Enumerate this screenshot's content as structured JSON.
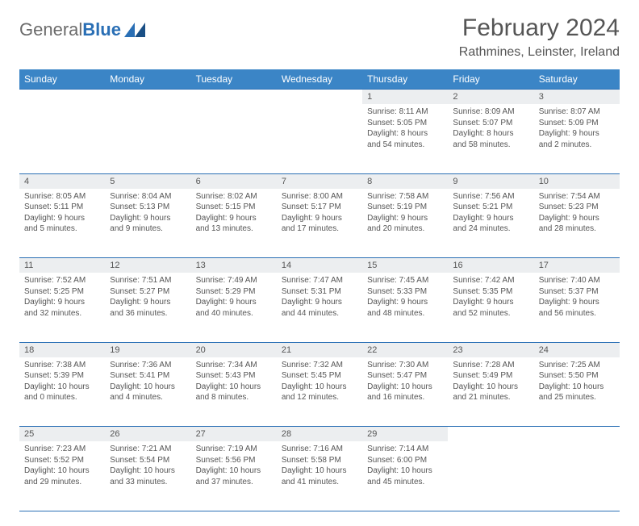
{
  "logo": {
    "word1": "General",
    "word2": "Blue"
  },
  "title": "February 2024",
  "location": "Rathmines, Leinster, Ireland",
  "colors": {
    "header_bg": "#3b85c6",
    "rule": "#2a6fb5",
    "daynum_bg": "#eceef0",
    "text": "#555555"
  },
  "weekdays": [
    "Sunday",
    "Monday",
    "Tuesday",
    "Wednesday",
    "Thursday",
    "Friday",
    "Saturday"
  ],
  "weeks": [
    [
      null,
      null,
      null,
      null,
      {
        "n": "1",
        "sr": "8:11 AM",
        "ss": "5:05 PM",
        "dl": "8 hours and 54 minutes."
      },
      {
        "n": "2",
        "sr": "8:09 AM",
        "ss": "5:07 PM",
        "dl": "8 hours and 58 minutes."
      },
      {
        "n": "3",
        "sr": "8:07 AM",
        "ss": "5:09 PM",
        "dl": "9 hours and 2 minutes."
      }
    ],
    [
      {
        "n": "4",
        "sr": "8:05 AM",
        "ss": "5:11 PM",
        "dl": "9 hours and 5 minutes."
      },
      {
        "n": "5",
        "sr": "8:04 AM",
        "ss": "5:13 PM",
        "dl": "9 hours and 9 minutes."
      },
      {
        "n": "6",
        "sr": "8:02 AM",
        "ss": "5:15 PM",
        "dl": "9 hours and 13 minutes."
      },
      {
        "n": "7",
        "sr": "8:00 AM",
        "ss": "5:17 PM",
        "dl": "9 hours and 17 minutes."
      },
      {
        "n": "8",
        "sr": "7:58 AM",
        "ss": "5:19 PM",
        "dl": "9 hours and 20 minutes."
      },
      {
        "n": "9",
        "sr": "7:56 AM",
        "ss": "5:21 PM",
        "dl": "9 hours and 24 minutes."
      },
      {
        "n": "10",
        "sr": "7:54 AM",
        "ss": "5:23 PM",
        "dl": "9 hours and 28 minutes."
      }
    ],
    [
      {
        "n": "11",
        "sr": "7:52 AM",
        "ss": "5:25 PM",
        "dl": "9 hours and 32 minutes."
      },
      {
        "n": "12",
        "sr": "7:51 AM",
        "ss": "5:27 PM",
        "dl": "9 hours and 36 minutes."
      },
      {
        "n": "13",
        "sr": "7:49 AM",
        "ss": "5:29 PM",
        "dl": "9 hours and 40 minutes."
      },
      {
        "n": "14",
        "sr": "7:47 AM",
        "ss": "5:31 PM",
        "dl": "9 hours and 44 minutes."
      },
      {
        "n": "15",
        "sr": "7:45 AM",
        "ss": "5:33 PM",
        "dl": "9 hours and 48 minutes."
      },
      {
        "n": "16",
        "sr": "7:42 AM",
        "ss": "5:35 PM",
        "dl": "9 hours and 52 minutes."
      },
      {
        "n": "17",
        "sr": "7:40 AM",
        "ss": "5:37 PM",
        "dl": "9 hours and 56 minutes."
      }
    ],
    [
      {
        "n": "18",
        "sr": "7:38 AM",
        "ss": "5:39 PM",
        "dl": "10 hours and 0 minutes."
      },
      {
        "n": "19",
        "sr": "7:36 AM",
        "ss": "5:41 PM",
        "dl": "10 hours and 4 minutes."
      },
      {
        "n": "20",
        "sr": "7:34 AM",
        "ss": "5:43 PM",
        "dl": "10 hours and 8 minutes."
      },
      {
        "n": "21",
        "sr": "7:32 AM",
        "ss": "5:45 PM",
        "dl": "10 hours and 12 minutes."
      },
      {
        "n": "22",
        "sr": "7:30 AM",
        "ss": "5:47 PM",
        "dl": "10 hours and 16 minutes."
      },
      {
        "n": "23",
        "sr": "7:28 AM",
        "ss": "5:49 PM",
        "dl": "10 hours and 21 minutes."
      },
      {
        "n": "24",
        "sr": "7:25 AM",
        "ss": "5:50 PM",
        "dl": "10 hours and 25 minutes."
      }
    ],
    [
      {
        "n": "25",
        "sr": "7:23 AM",
        "ss": "5:52 PM",
        "dl": "10 hours and 29 minutes."
      },
      {
        "n": "26",
        "sr": "7:21 AM",
        "ss": "5:54 PM",
        "dl": "10 hours and 33 minutes."
      },
      {
        "n": "27",
        "sr": "7:19 AM",
        "ss": "5:56 PM",
        "dl": "10 hours and 37 minutes."
      },
      {
        "n": "28",
        "sr": "7:16 AM",
        "ss": "5:58 PM",
        "dl": "10 hours and 41 minutes."
      },
      {
        "n": "29",
        "sr": "7:14 AM",
        "ss": "6:00 PM",
        "dl": "10 hours and 45 minutes."
      },
      null,
      null
    ]
  ],
  "labels": {
    "sunrise": "Sunrise: ",
    "sunset": "Sunset: ",
    "daylight": "Daylight: "
  }
}
